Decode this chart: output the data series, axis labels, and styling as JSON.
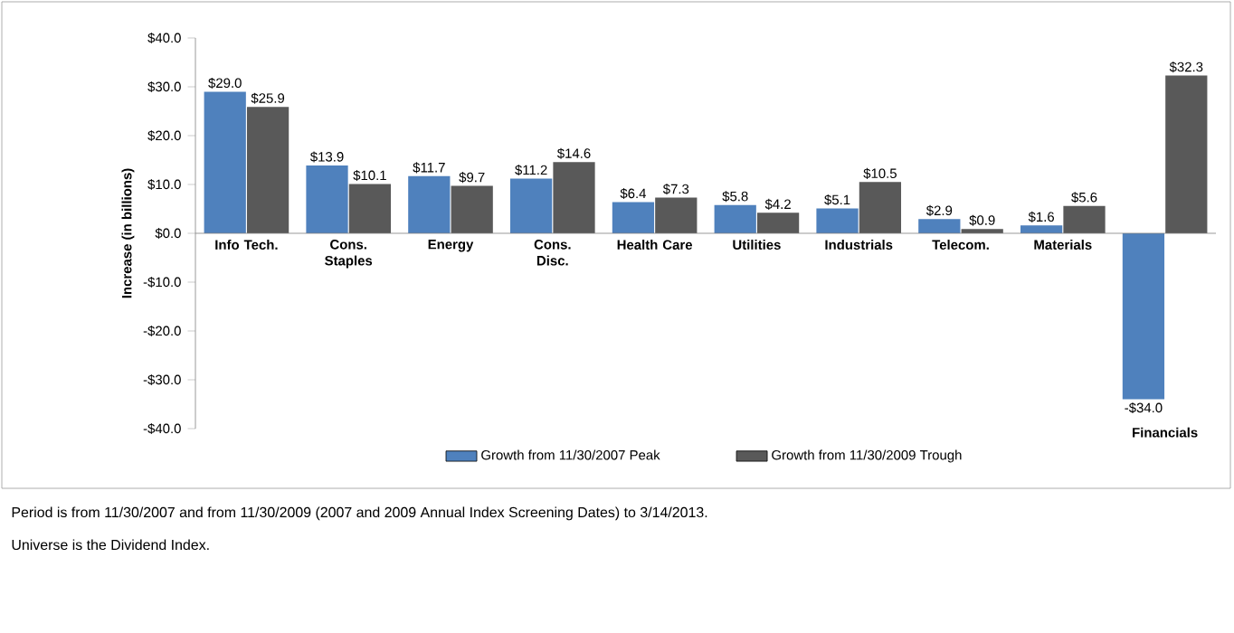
{
  "chart_data": {
    "type": "bar",
    "ylabel": "Increase (in billions)",
    "categories": [
      "Info Tech.",
      "Cons. Staples",
      "Energy",
      "Cons. Disc.",
      "Health Care",
      "Utilities",
      "Industrials",
      "Telecom.",
      "Materials",
      "Financials"
    ],
    "series": [
      {
        "name": "Growth from 11/30/2007 Peak",
        "color": "#4f81bd",
        "values": [
          29.0,
          13.9,
          11.7,
          11.2,
          6.4,
          5.8,
          5.1,
          2.9,
          1.6,
          -34.0
        ],
        "value_labels": [
          "$29.0",
          "$13.9",
          "$11.7",
          "$11.2",
          "$6.4",
          "$5.8",
          "$5.1",
          "$2.9",
          "$1.6",
          "-$34.0"
        ]
      },
      {
        "name": "Growth from 11/30/2009 Trough",
        "color": "#595959",
        "values": [
          25.9,
          10.1,
          9.7,
          14.6,
          7.3,
          4.2,
          10.5,
          0.9,
          5.6,
          32.3
        ],
        "value_labels": [
          "$25.9",
          "$10.1",
          "$9.7",
          "$14.6",
          "$7.3",
          "$4.2",
          "$10.5",
          "$0.9",
          "$5.6",
          "$32.3"
        ]
      }
    ],
    "ylim": [
      -40,
      40
    ],
    "yticks": [
      {
        "value": -40,
        "label": "-$40.0"
      },
      {
        "value": -30,
        "label": "-$30.0"
      },
      {
        "value": -20,
        "label": "-$20.0"
      },
      {
        "value": -10,
        "label": "-$10.0"
      },
      {
        "value": 0,
        "label": "$0.0"
      },
      {
        "value": 10,
        "label": "$10.0"
      },
      {
        "value": 20,
        "label": "$20.0"
      },
      {
        "value": 30,
        "label": "$30.0"
      },
      {
        "value": 40,
        "label": "$40.0"
      }
    ],
    "grid": false,
    "legend": "bottom",
    "annotations": [
      "Period is from 11/30/2007 and from 11/30/2009 (2007 and 2009 Annual Index Screening Dates) to 3/14/2013.",
      "Universe is the Dividend Index."
    ]
  }
}
